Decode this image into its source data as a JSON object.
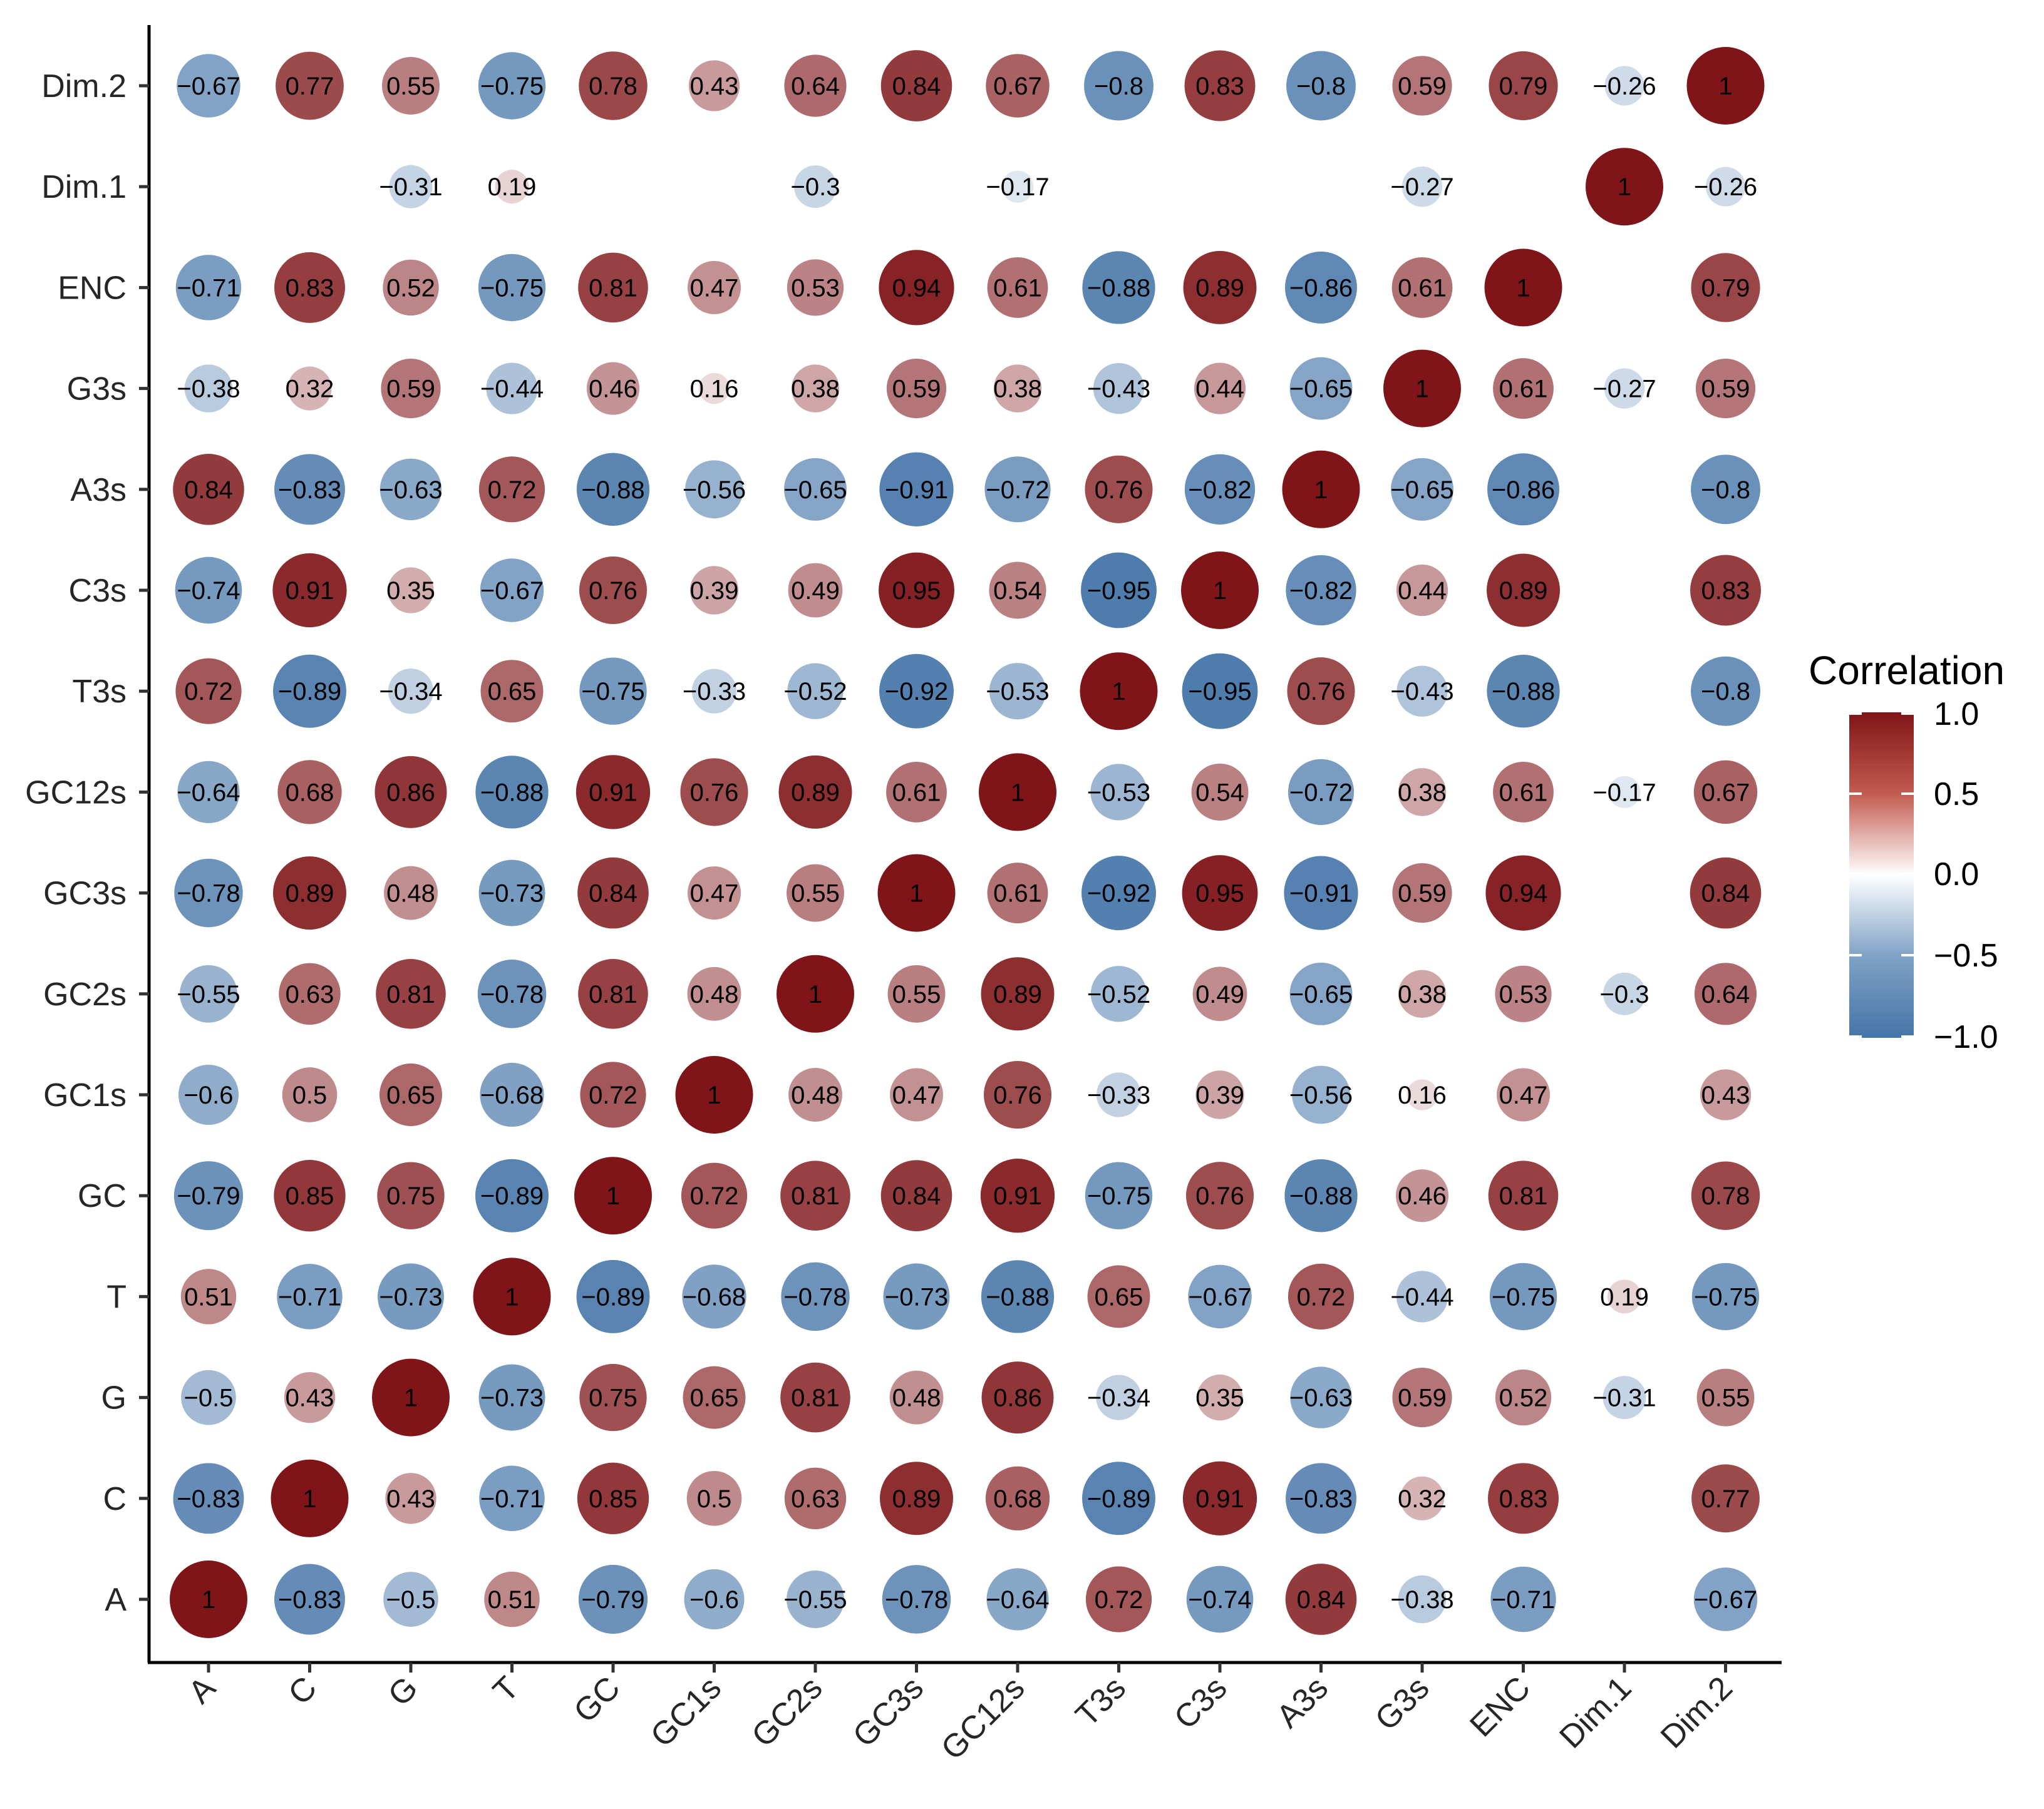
{
  "chart_data": {
    "type": "heatmap",
    "subtype": "correlation-circle-matrix",
    "variables": [
      "A",
      "C",
      "G",
      "T",
      "GC",
      "GC1s",
      "GC2s",
      "GC3s",
      "GC12s",
      "T3s",
      "C3s",
      "A3s",
      "G3s",
      "ENC",
      "Dim.1",
      "Dim.2"
    ],
    "x_categories": [
      "A",
      "C",
      "G",
      "T",
      "GC",
      "GC1s",
      "GC2s",
      "GC3s",
      "GC12s",
      "T3s",
      "C3s",
      "A3s",
      "G3s",
      "ENC",
      "Dim.1",
      "Dim.2"
    ],
    "y_categories_bottom_to_top": [
      "A",
      "C",
      "G",
      "T",
      "GC",
      "GC1s",
      "GC2s",
      "GC3s",
      "GC12s",
      "T3s",
      "C3s",
      "A3s",
      "G3s",
      "ENC",
      "Dim.1",
      "Dim.2"
    ],
    "matrix": [
      [
        1,
        -0.83,
        -0.5,
        0.51,
        -0.79,
        -0.6,
        -0.55,
        -0.78,
        -0.64,
        0.72,
        -0.74,
        0.84,
        -0.38,
        -0.71,
        null,
        -0.67
      ],
      [
        -0.83,
        1,
        0.43,
        -0.71,
        0.85,
        0.5,
        0.63,
        0.89,
        0.68,
        -0.89,
        0.91,
        -0.83,
        0.32,
        0.83,
        null,
        0.77
      ],
      [
        -0.5,
        0.43,
        1,
        -0.73,
        0.75,
        0.65,
        0.81,
        0.48,
        0.86,
        -0.34,
        0.35,
        -0.63,
        0.59,
        0.52,
        -0.31,
        0.55
      ],
      [
        0.51,
        -0.71,
        -0.73,
        1,
        -0.89,
        -0.68,
        -0.78,
        -0.73,
        -0.88,
        0.65,
        -0.67,
        0.72,
        -0.44,
        -0.75,
        0.19,
        -0.75
      ],
      [
        -0.79,
        0.85,
        0.75,
        -0.89,
        1,
        0.72,
        0.81,
        0.84,
        0.91,
        -0.75,
        0.76,
        -0.88,
        0.46,
        0.81,
        null,
        0.78
      ],
      [
        -0.6,
        0.5,
        0.65,
        -0.68,
        0.72,
        1,
        0.48,
        0.47,
        0.76,
        -0.33,
        0.39,
        -0.56,
        0.16,
        0.47,
        null,
        0.43
      ],
      [
        -0.55,
        0.63,
        0.81,
        -0.78,
        0.81,
        0.48,
        1,
        0.55,
        0.89,
        -0.52,
        0.49,
        -0.65,
        0.38,
        0.53,
        -0.3,
        0.64
      ],
      [
        -0.78,
        0.89,
        0.48,
        -0.73,
        0.84,
        0.47,
        0.55,
        1,
        0.61,
        -0.92,
        0.95,
        -0.91,
        0.59,
        0.94,
        null,
        0.84
      ],
      [
        -0.64,
        0.68,
        0.86,
        -0.88,
        0.91,
        0.76,
        0.89,
        0.61,
        1,
        -0.53,
        0.54,
        -0.72,
        0.38,
        0.61,
        -0.17,
        0.67
      ],
      [
        0.72,
        -0.89,
        -0.34,
        0.65,
        -0.75,
        -0.33,
        -0.52,
        -0.92,
        -0.53,
        1,
        -0.95,
        0.76,
        -0.43,
        -0.88,
        null,
        -0.8
      ],
      [
        -0.74,
        0.91,
        0.35,
        -0.67,
        0.76,
        0.39,
        0.49,
        0.95,
        0.54,
        -0.95,
        1,
        -0.82,
        0.44,
        0.89,
        null,
        0.83
      ],
      [
        0.84,
        -0.83,
        -0.63,
        0.72,
        -0.88,
        -0.56,
        -0.65,
        -0.91,
        -0.72,
        0.76,
        -0.82,
        1,
        -0.65,
        -0.86,
        null,
        -0.8
      ],
      [
        -0.38,
        0.32,
        0.59,
        -0.44,
        0.46,
        0.16,
        0.38,
        0.59,
        0.38,
        -0.43,
        0.44,
        -0.65,
        1,
        0.61,
        -0.27,
        0.59
      ],
      [
        -0.71,
        0.83,
        0.52,
        -0.75,
        0.81,
        0.47,
        0.53,
        0.94,
        0.61,
        -0.88,
        0.89,
        -0.86,
        0.61,
        1,
        null,
        0.79
      ],
      [
        null,
        null,
        -0.31,
        0.19,
        null,
        null,
        -0.3,
        null,
        -0.17,
        null,
        null,
        null,
        -0.27,
        null,
        1,
        -0.26
      ],
      [
        -0.67,
        0.77,
        0.55,
        -0.75,
        0.78,
        0.43,
        0.64,
        0.84,
        0.67,
        -0.8,
        0.83,
        -0.8,
        0.59,
        0.79,
        -0.26,
        1
      ]
    ],
    "legend": {
      "title": "Correlation",
      "range": [
        -1.0,
        1.0
      ],
      "ticks": [
        "1.0",
        "0.5",
        "0.0",
        "−0.5",
        "−1.0"
      ],
      "tick_values": [
        1.0,
        0.5,
        0.0,
        -0.5,
        -1.0
      ],
      "position": "right"
    },
    "colors": {
      "negative": "#4575a8",
      "neutral": "#ffffff",
      "positive": "#7f1518",
      "axis": "#000000"
    }
  }
}
